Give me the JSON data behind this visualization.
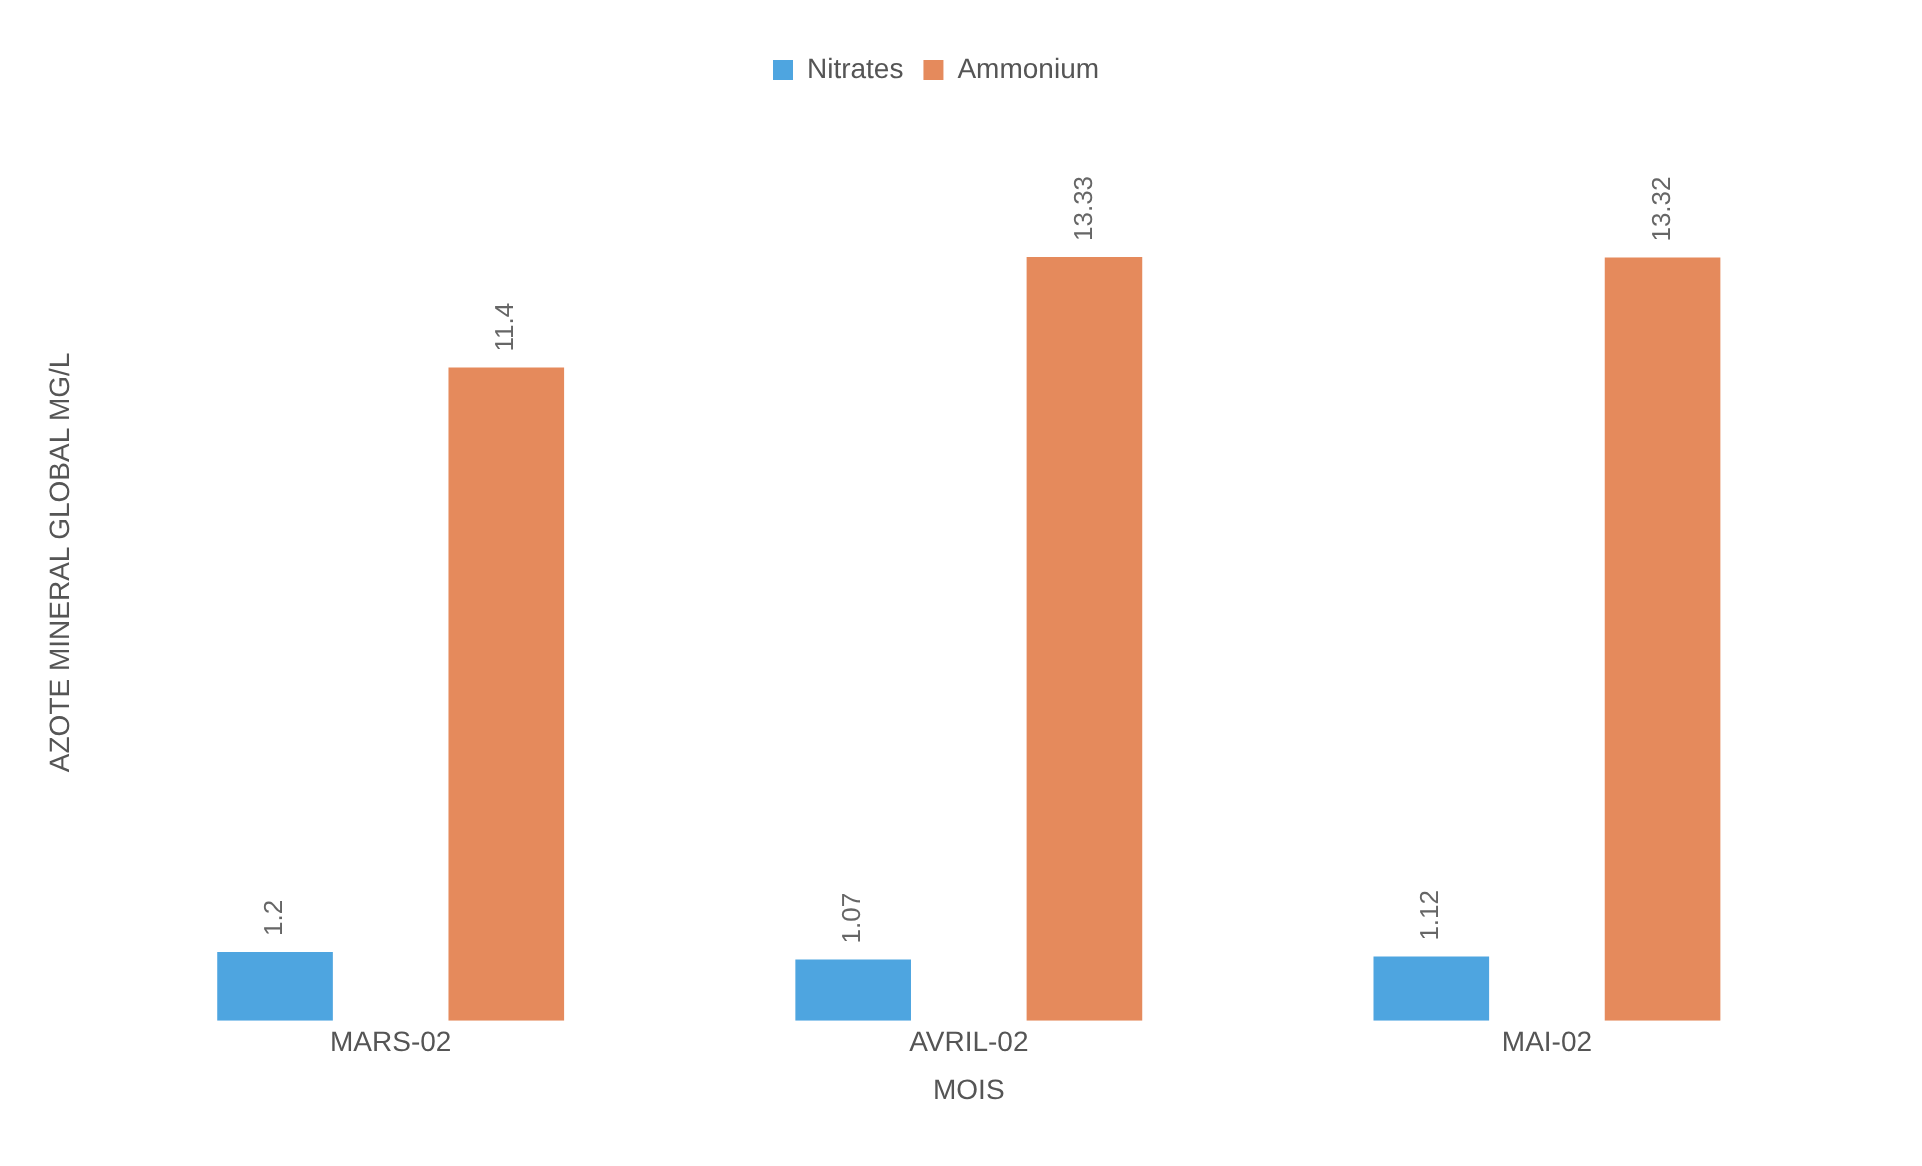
{
  "chart_data": {
    "type": "bar",
    "xlabel": "MOIS",
    "ylabel": "AZOTE MINERAL GLOBAL MG/L",
    "categories": [
      "MARS-02",
      "AVRIL-02",
      "MAI-02"
    ],
    "series": [
      {
        "name": "Nitrates",
        "color": "#4ea5e0",
        "values": [
          1.2,
          1.07,
          1.12
        ]
      },
      {
        "name": "Ammonium",
        "color": "#e58a5c",
        "values": [
          11.4,
          13.33,
          13.32
        ]
      }
    ],
    "data_labels": true,
    "legend": "top",
    "grid": false
  }
}
